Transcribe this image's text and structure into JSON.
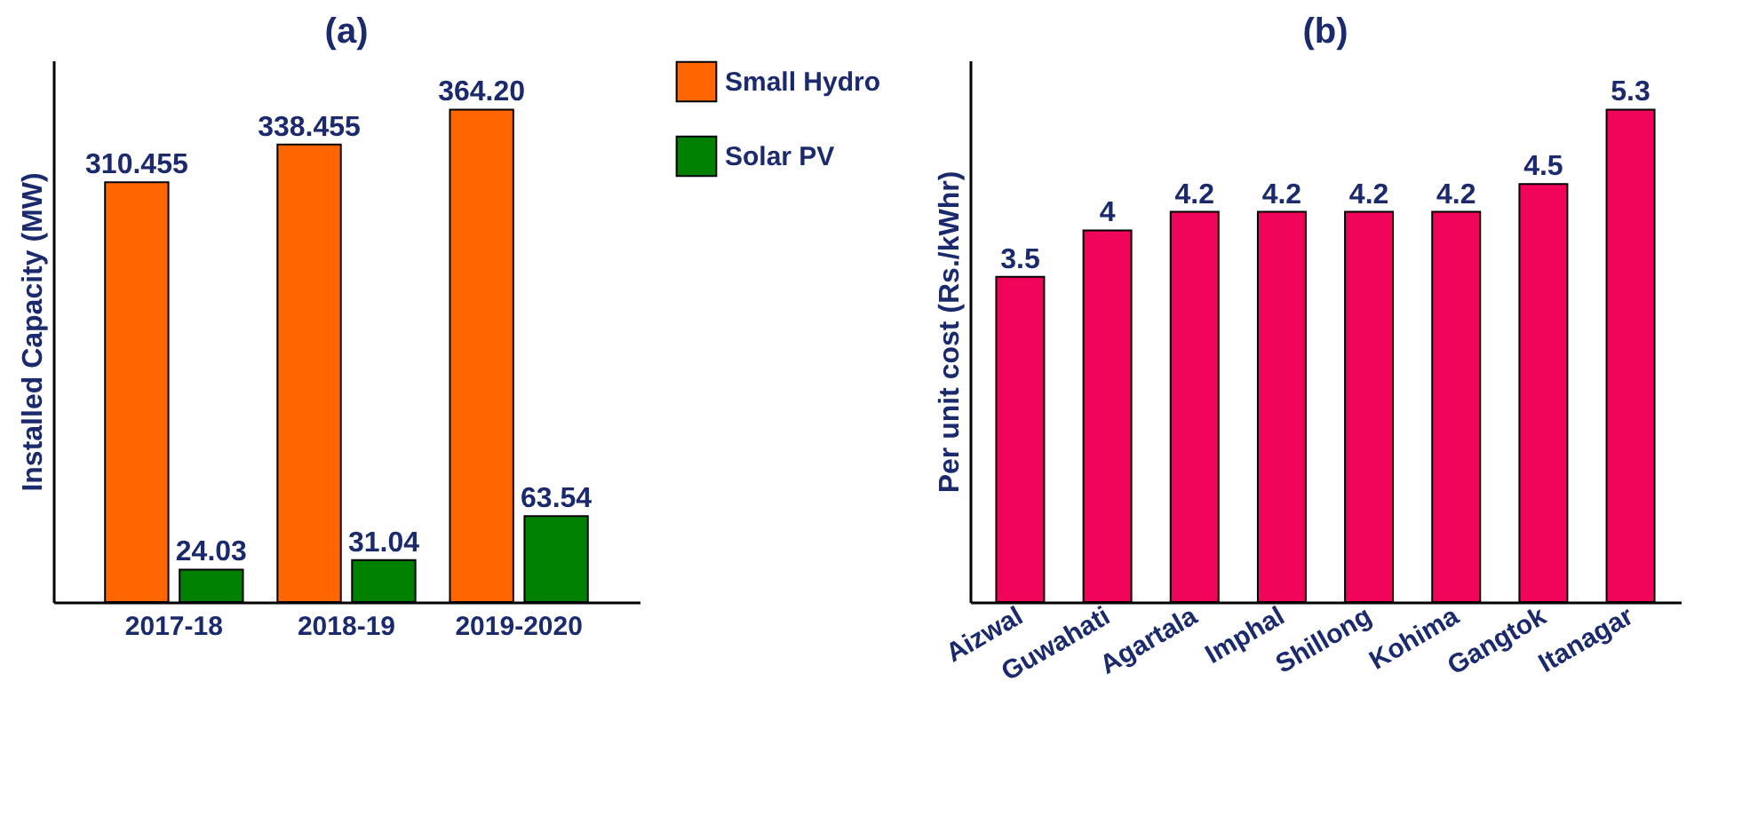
{
  "chart_data": [
    {
      "type": "bar",
      "title": "(a)",
      "ylabel": "Installed Capacity (MW)",
      "categories": [
        "2017-18",
        "2018-19",
        "2019-2020"
      ],
      "series": [
        {
          "name": "Small Hydro",
          "color": "#ff6600",
          "values": [
            310.455,
            338.455,
            364.2
          ],
          "value_labels": [
            "310.455",
            "338.455",
            "364.20"
          ]
        },
        {
          "name": "Solar PV",
          "color": "#008000",
          "values": [
            24.03,
            31.04,
            63.54
          ],
          "value_labels": [
            "24.03",
            "31.04",
            "63.54"
          ]
        }
      ],
      "legend": "right",
      "tick_labels": "x",
      "grid": false
    },
    {
      "type": "bar",
      "title": "(b)",
      "ylabel": "Per unit cost (Rs./kWhr)",
      "categories": [
        "Aizwal",
        "Guwahati",
        "Agartala",
        "Imphal",
        "Shillong",
        "Kohima",
        "Gangtok",
        "Itanagar"
      ],
      "values": [
        3.5,
        4,
        4.2,
        4.2,
        4.2,
        4.2,
        4.5,
        5.3
      ],
      "color": "#f0055a",
      "data_labels": true,
      "tick_labels": "x",
      "grid": false
    }
  ]
}
